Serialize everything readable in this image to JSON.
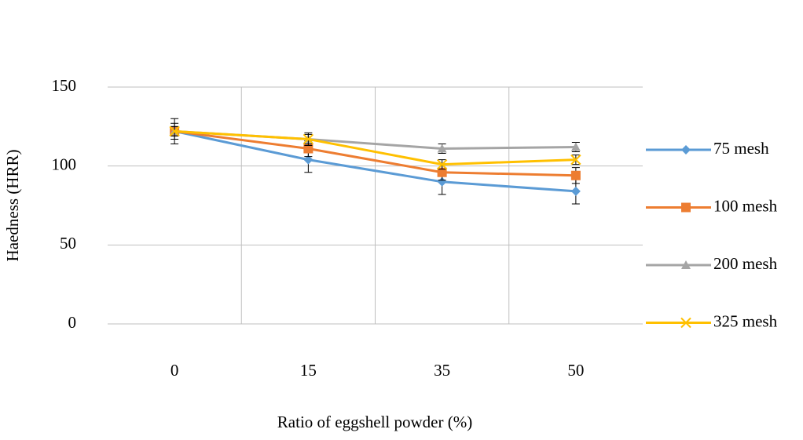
{
  "chart_data": {
    "type": "line",
    "x_label": "Ratio of eggshell powder (%)",
    "y_label": "Haedness (HRR)",
    "categories": [
      "0",
      "15",
      "35",
      "50"
    ],
    "ylim": [
      0,
      150
    ],
    "yticks": [
      0,
      50,
      100,
      150
    ],
    "grid": true,
    "legend": "right",
    "series": [
      {
        "name": "75 mesh",
        "color": "#5b9bd5",
        "marker": "diamond",
        "values": [
          122,
          104,
          90,
          84
        ],
        "errors": [
          8,
          8,
          8,
          8
        ]
      },
      {
        "name": "100 mesh",
        "color": "#ed7d31",
        "marker": "square",
        "values": [
          122,
          111,
          96,
          94
        ],
        "errors": [
          5,
          5,
          5,
          5
        ]
      },
      {
        "name": "200 mesh",
        "color": "#a5a5a5",
        "marker": "triangle",
        "values": [
          122,
          117,
          111,
          112
        ],
        "errors": [
          3,
          4,
          3,
          3
        ]
      },
      {
        "name": "325 mesh",
        "color": "#ffc000",
        "marker": "x",
        "values": [
          122,
          117,
          101,
          104
        ],
        "errors": [
          3,
          3,
          3,
          3
        ]
      }
    ]
  }
}
